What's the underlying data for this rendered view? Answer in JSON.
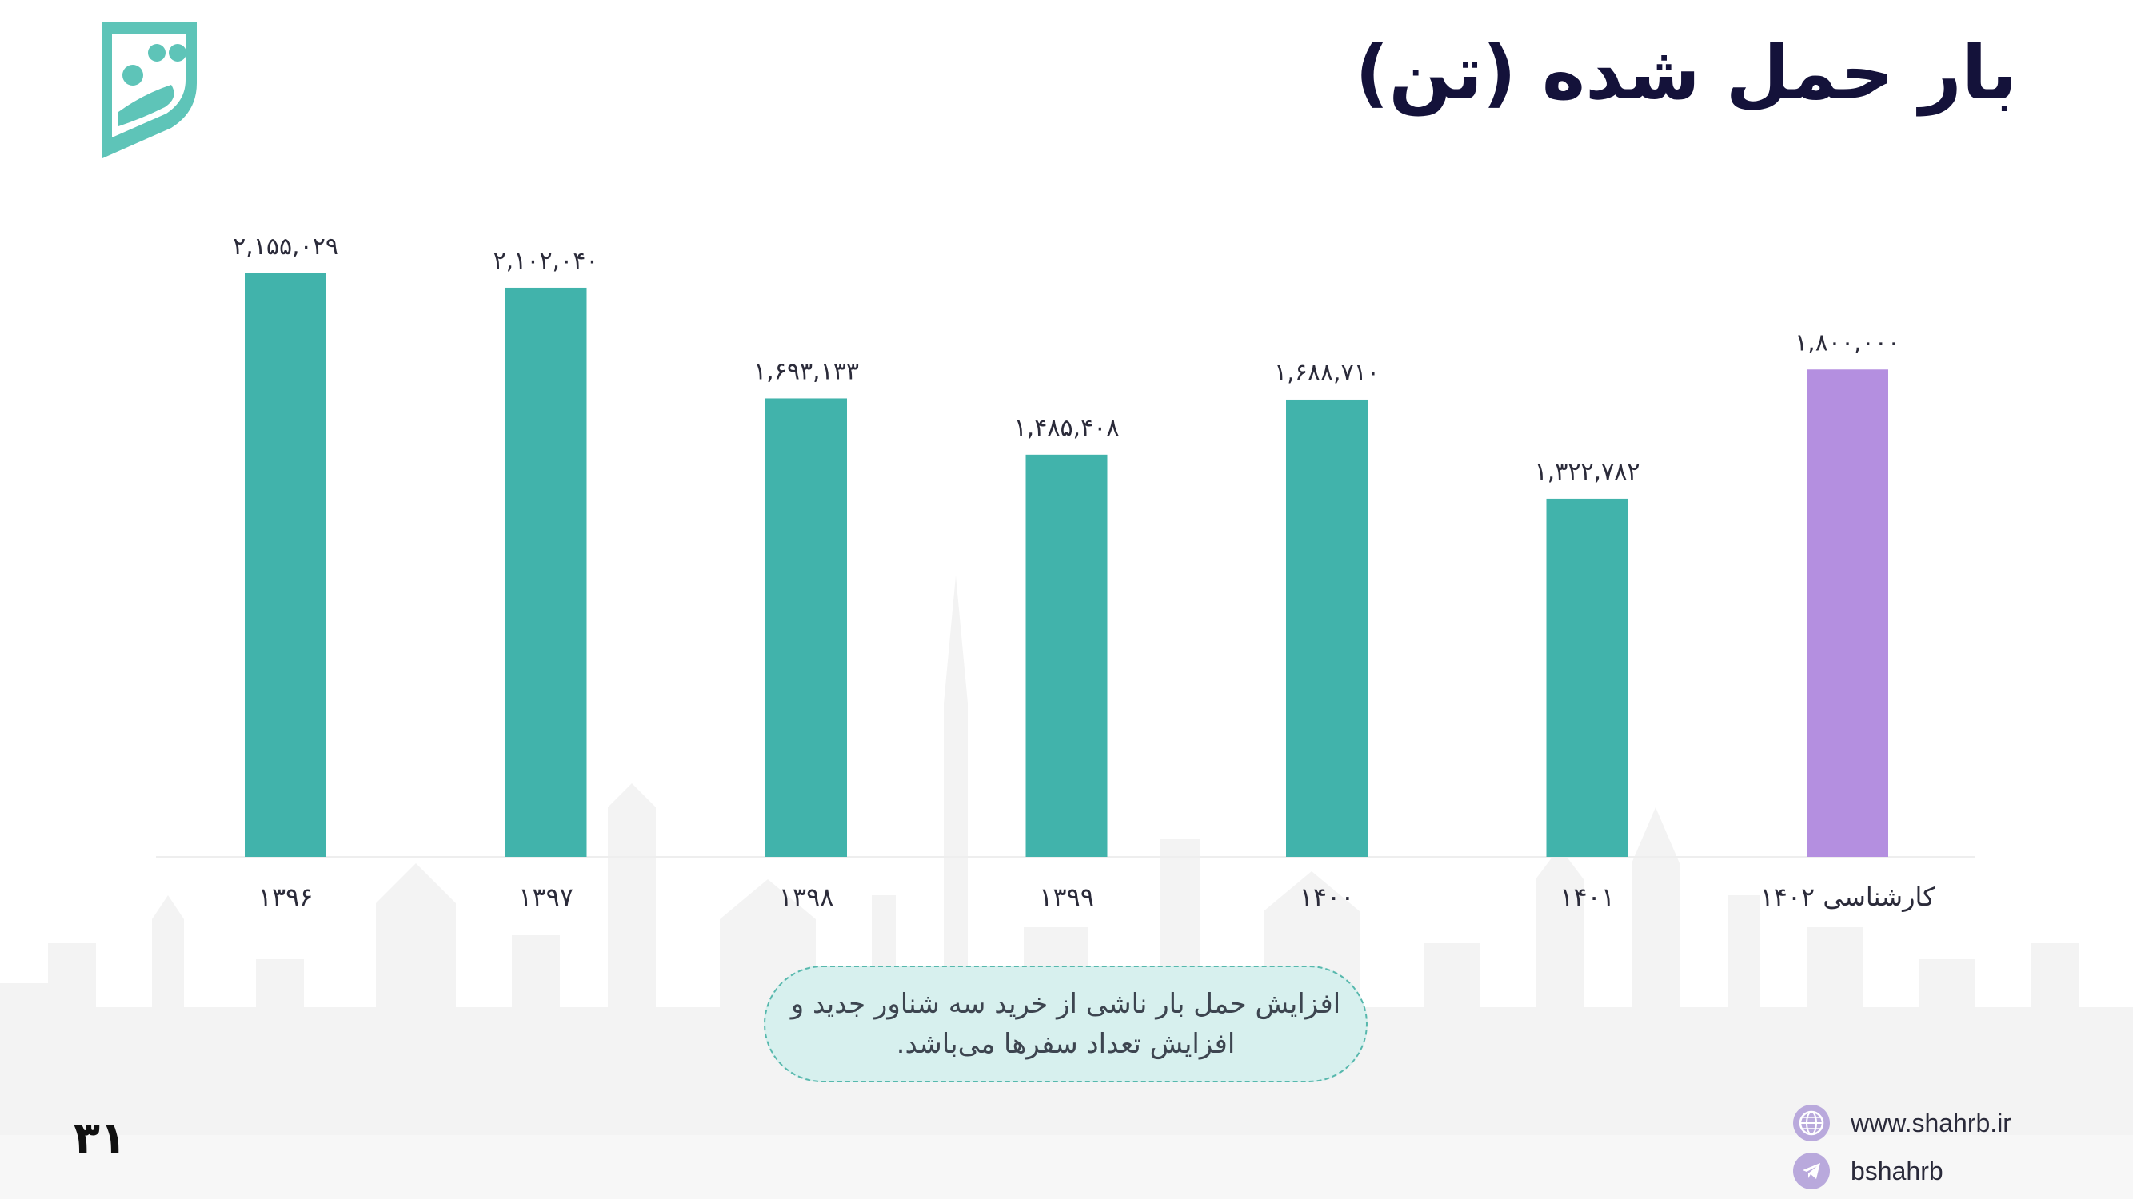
{
  "slide": {
    "title": "بار حمل شده (تن)",
    "page_number": "۳۱",
    "note_line1": "افزایش حمل بار ناشی از خرید سه شناور جدید و",
    "note_line2": "افزایش تعداد سفرها می‌باشد.",
    "website": "www.shahrb.ir",
    "telegram": "bshahrb"
  },
  "icons": [
    "logo-icon",
    "globe-icon",
    "telegram-icon"
  ],
  "colors": {
    "actual": "#41b3ab",
    "forecast": "#b48fe0",
    "title": "#14123a",
    "note_bg": "#d7f0ee",
    "note_border": "#57b8ad"
  },
  "chart_data": {
    "type": "bar",
    "categories": [
      "۱۳۹۶",
      "۱۳۹۷",
      "۱۳۹۸",
      "۱۳۹۹",
      "۱۴۰۰",
      "۱۴۰۱",
      "کارشناسی ۱۴۰۲"
    ],
    "values": [
      2155029,
      2102040,
      1693133,
      1485408,
      1688710,
      1322782,
      1800000
    ],
    "labels": [
      "۲,۱۵۵,۰۲۹",
      "۲,۱۰۲,۰۴۰",
      "۱,۶۹۳,۱۳۳",
      "۱,۴۸۵,۴۰۸",
      "۱,۶۸۸,۷۱۰",
      "۱,۳۲۲,۷۸۲",
      "۱,۸۰۰,۰۰۰"
    ],
    "highlight": [
      false,
      false,
      false,
      false,
      false,
      false,
      true
    ],
    "ylim": [
      0,
      2155029
    ],
    "grid": false,
    "title": ""
  }
}
